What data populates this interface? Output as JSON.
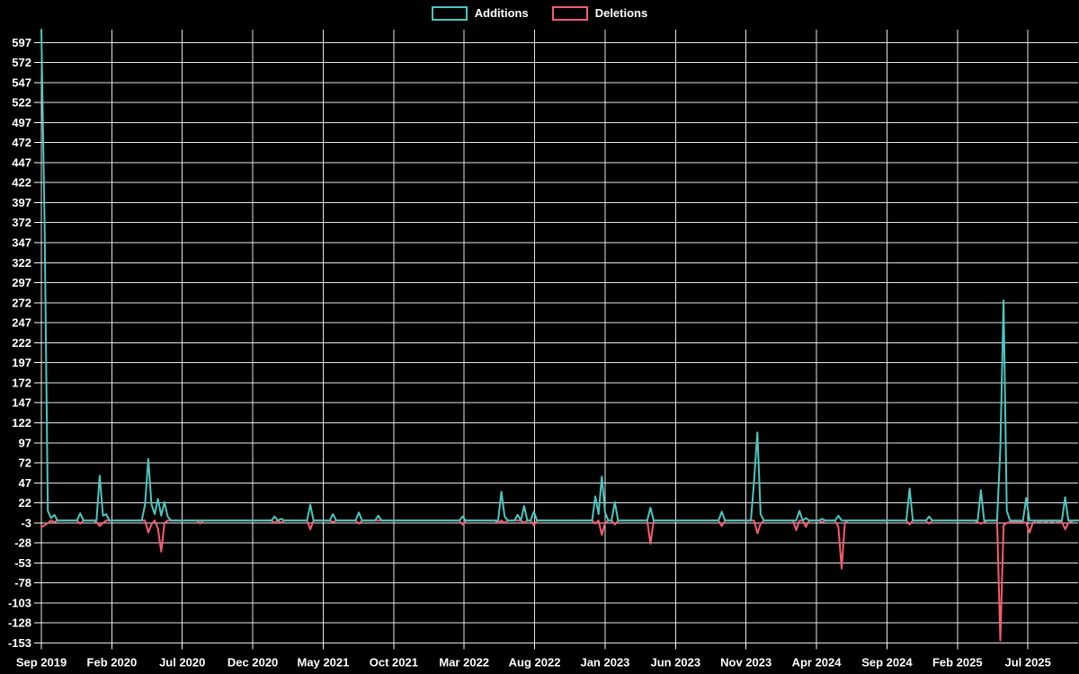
{
  "colors": {
    "background": "#000000",
    "grid": "#e6e6e6",
    "text": "#ffffff",
    "additions": "#4BC7C0",
    "deletions": "#F75C70"
  },
  "legend": {
    "items": [
      {
        "label": "Additions",
        "color": "#4BC7C0"
      },
      {
        "label": "Deletions",
        "color": "#F75C70"
      }
    ]
  },
  "chart_data": {
    "type": "line",
    "title": "",
    "legend_position": "top",
    "grid": true,
    "x_tick_labels": [
      "Sep 2019",
      "Feb 2020",
      "Jul 2020",
      "Dec 2020",
      "May 2021",
      "Oct 2021",
      "Mar 2022",
      "Aug 2022",
      "Jan 2023",
      "Jun 2023",
      "Nov 2023",
      "Apr 2024",
      "Sep 2024",
      "Feb 2025",
      "Jul 2025"
    ],
    "y_tick_max": 597,
    "y_tick_min": -153,
    "y_tick_step": 25,
    "y_domain": [
      -153,
      613
    ],
    "total_weeks": 320,
    "weeks_per_x_tick": 21.75,
    "series": [
      {
        "name": "Additions",
        "color": "#4BC7C0",
        "default": 0,
        "points": [
          [
            0,
            613
          ],
          [
            1,
            370
          ],
          [
            2,
            12
          ],
          [
            3,
            3
          ],
          [
            4,
            7
          ],
          [
            12,
            9
          ],
          [
            18,
            56
          ],
          [
            19,
            6
          ],
          [
            20,
            8
          ],
          [
            32,
            20
          ],
          [
            33,
            77
          ],
          [
            34,
            20
          ],
          [
            35,
            8
          ],
          [
            36,
            27
          ],
          [
            37,
            6
          ],
          [
            38,
            23
          ],
          [
            39,
            5
          ],
          [
            72,
            5
          ],
          [
            74,
            2
          ],
          [
            83,
            20
          ],
          [
            90,
            8
          ],
          [
            98,
            10
          ],
          [
            104,
            6
          ],
          [
            130,
            5
          ],
          [
            142,
            36
          ],
          [
            143,
            5
          ],
          [
            147,
            7
          ],
          [
            149,
            18
          ],
          [
            152,
            11
          ],
          [
            171,
            30
          ],
          [
            172,
            8
          ],
          [
            173,
            55
          ],
          [
            174,
            10
          ],
          [
            177,
            23
          ],
          [
            188,
            16
          ],
          [
            210,
            11
          ],
          [
            220,
            50
          ],
          [
            221,
            110
          ],
          [
            222,
            8
          ],
          [
            234,
            12
          ],
          [
            236,
            3
          ],
          [
            241,
            2
          ],
          [
            246,
            6
          ],
          [
            268,
            40
          ],
          [
            274,
            5
          ],
          [
            290,
            38
          ],
          [
            296,
            90
          ],
          [
            297,
            275
          ],
          [
            298,
            12
          ],
          [
            304,
            28
          ],
          [
            316,
            29
          ]
        ]
      },
      {
        "name": "Deletions",
        "color": "#F75C70",
        "default": 0,
        "points": [
          [
            0,
            -8
          ],
          [
            1,
            -6
          ],
          [
            2,
            -3
          ],
          [
            4,
            -2
          ],
          [
            12,
            -4
          ],
          [
            17,
            -2
          ],
          [
            18,
            -7
          ],
          [
            19,
            -3
          ],
          [
            33,
            -15
          ],
          [
            34,
            -5
          ],
          [
            36,
            -10
          ],
          [
            37,
            -39
          ],
          [
            38,
            -3
          ],
          [
            49,
            -4
          ],
          [
            72,
            -3
          ],
          [
            74,
            -3
          ],
          [
            83,
            -11
          ],
          [
            90,
            -2
          ],
          [
            98,
            -4
          ],
          [
            130,
            -5
          ],
          [
            141,
            -3
          ],
          [
            143,
            -3
          ],
          [
            149,
            -3
          ],
          [
            152,
            -6
          ],
          [
            171,
            -4
          ],
          [
            173,
            -18
          ],
          [
            174,
            -3
          ],
          [
            177,
            -5
          ],
          [
            188,
            -29
          ],
          [
            210,
            -7
          ],
          [
            221,
            -16
          ],
          [
            222,
            -4
          ],
          [
            233,
            -12
          ],
          [
            236,
            -8
          ],
          [
            241,
            -2
          ],
          [
            246,
            -8
          ],
          [
            247,
            -60
          ],
          [
            248,
            -3
          ],
          [
            268,
            -5
          ],
          [
            274,
            -4
          ],
          [
            289,
            -2
          ],
          [
            290,
            -4
          ],
          [
            291,
            -2
          ],
          [
            296,
            -150
          ],
          [
            297,
            -6
          ],
          [
            298,
            -3
          ],
          [
            299,
            -2
          ],
          [
            300,
            -2
          ],
          [
            301,
            -2
          ],
          [
            302,
            -2
          ],
          [
            303,
            -2
          ],
          [
            304,
            -3
          ],
          [
            305,
            -15
          ],
          [
            306,
            -3
          ],
          [
            308,
            -2
          ],
          [
            310,
            -2
          ],
          [
            312,
            -2
          ],
          [
            314,
            -2
          ],
          [
            315,
            -2
          ],
          [
            316,
            -11
          ],
          [
            317,
            -3
          ],
          [
            318,
            -1
          ]
        ]
      }
    ]
  }
}
